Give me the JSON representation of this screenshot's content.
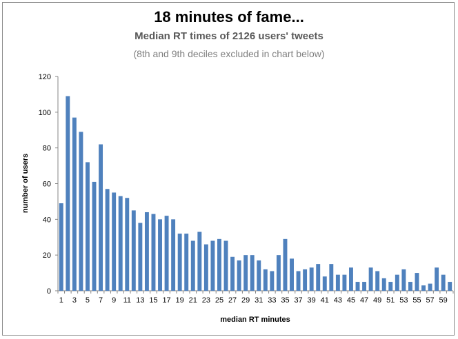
{
  "chart_data": {
    "type": "bar",
    "title": "18 minutes of fame...",
    "subtitle": "Median RT times of 2126 users' tweets",
    "note": "(8th and 9th deciles excluded in chart below)",
    "xlabel": "median RT minutes",
    "ylabel": "number of users",
    "ylim": [
      0,
      120
    ],
    "yticks": [
      0,
      20,
      40,
      60,
      80,
      100,
      120
    ],
    "categories": [
      "1",
      "2",
      "3",
      "4",
      "5",
      "6",
      "7",
      "8",
      "9",
      "10",
      "11",
      "12",
      "13",
      "14",
      "15",
      "16",
      "17",
      "18",
      "19",
      "20",
      "21",
      "22",
      "23",
      "24",
      "25",
      "26",
      "27",
      "28",
      "29",
      "30",
      "31",
      "32",
      "33",
      "34",
      "35",
      "36",
      "37",
      "38",
      "39",
      "40",
      "41",
      "42",
      "43",
      "44",
      "45",
      "46",
      "47",
      "48",
      "49",
      "50",
      "51",
      "52",
      "53",
      "54",
      "55",
      "56",
      "57",
      "58",
      "59",
      "60"
    ],
    "xtick_labels": [
      "1",
      "3",
      "5",
      "7",
      "9",
      "11",
      "13",
      "15",
      "17",
      "19",
      "21",
      "23",
      "25",
      "27",
      "29",
      "31",
      "33",
      "35",
      "37",
      "39",
      "41",
      "43",
      "45",
      "47",
      "49",
      "51",
      "53",
      "55",
      "57",
      "59"
    ],
    "values": [
      49,
      109,
      97,
      89,
      72,
      61,
      82,
      57,
      55,
      53,
      52,
      45,
      38,
      44,
      43,
      40,
      42,
      40,
      32,
      32,
      28,
      33,
      26,
      28,
      29,
      28,
      19,
      17,
      20,
      20,
      17,
      12,
      11,
      20,
      29,
      18,
      11,
      12,
      13,
      15,
      8,
      15,
      9,
      9,
      13,
      5,
      5,
      13,
      11,
      7,
      5,
      9,
      12,
      5,
      10,
      3,
      4,
      13,
      9,
      5
    ],
    "bar_color": "#4f81bd",
    "grid": false,
    "legend": "none"
  }
}
